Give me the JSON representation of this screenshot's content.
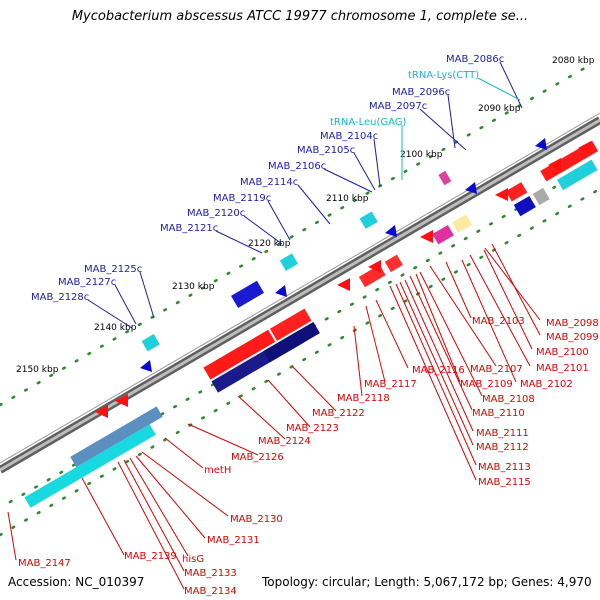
{
  "header": {
    "title": "Mycobacterium abscessus ATCC 19977 chromosome 1, complete se..."
  },
  "footer": {
    "accession": "Accession: NC_010397",
    "topology": "Topology: circular; Length: 5,067,172 bp; Genes: 4,970"
  },
  "colors": {
    "forward": "#ff1010",
    "reverse": "#00008b",
    "rna": "#12b8cc",
    "leader_red": "#e00000",
    "leader_blue": "#1c1cb0",
    "backbone": "#7a7a7a"
  },
  "ticks": [
    {
      "label": "2080 kbp"
    },
    {
      "label": "2090 kbp"
    },
    {
      "label": "2100 kbp"
    },
    {
      "label": "2110 kbp"
    },
    {
      "label": "2120 kbp"
    },
    {
      "label": "2130 kbp"
    },
    {
      "label": "2140 kbp"
    },
    {
      "label": "2150 kbp"
    }
  ],
  "labels_upper": [
    {
      "text": "MAB_2086c",
      "kind": "blue"
    },
    {
      "text": "tRNA-Lys(CTT)",
      "kind": "cyan"
    },
    {
      "text": "MAB_2096c",
      "kind": "blue"
    },
    {
      "text": "MAB_2097c",
      "kind": "blue"
    },
    {
      "text": "tRNA-Leu(GAG)",
      "kind": "cyan"
    },
    {
      "text": "MAB_2104c",
      "kind": "blue"
    },
    {
      "text": "MAB_2105c",
      "kind": "blue"
    },
    {
      "text": "MAB_2106c",
      "kind": "blue"
    },
    {
      "text": "MAB_2114c",
      "kind": "blue"
    },
    {
      "text": "MAB_2119c",
      "kind": "blue"
    },
    {
      "text": "MAB_2120c",
      "kind": "blue"
    },
    {
      "text": "MAB_2121c",
      "kind": "blue"
    },
    {
      "text": "MAB_2125c",
      "kind": "blue"
    },
    {
      "text": "MAB_2127c",
      "kind": "blue"
    },
    {
      "text": "MAB_2128c",
      "kind": "blue"
    }
  ],
  "labels_lower": [
    {
      "text": "MAB_2098"
    },
    {
      "text": "MAB_2099"
    },
    {
      "text": "MAB_2100"
    },
    {
      "text": "MAB_2101"
    },
    {
      "text": "MAB_2102"
    },
    {
      "text": "MAB_2103"
    },
    {
      "text": "MAB_2107"
    },
    {
      "text": "MAB_2108"
    },
    {
      "text": "MAB_2109"
    },
    {
      "text": "MAB_2110"
    },
    {
      "text": "MAB_2111"
    },
    {
      "text": "MAB_2112"
    },
    {
      "text": "MAB_2113"
    },
    {
      "text": "MAB_2115"
    },
    {
      "text": "MAB_2116"
    },
    {
      "text": "MAB_2117"
    },
    {
      "text": "MAB_2118"
    },
    {
      "text": "MAB_2122"
    },
    {
      "text": "MAB_2123"
    },
    {
      "text": "MAB_2124"
    },
    {
      "text": "MAB_2126"
    },
    {
      "text": "metH"
    },
    {
      "text": "MAB_2130"
    },
    {
      "text": "MAB_2131"
    },
    {
      "text": "hisG"
    },
    {
      "text": "MAB_2133"
    },
    {
      "text": "MAB_2134"
    },
    {
      "text": "MAB_2139"
    },
    {
      "text": "MAB_2147"
    }
  ]
}
